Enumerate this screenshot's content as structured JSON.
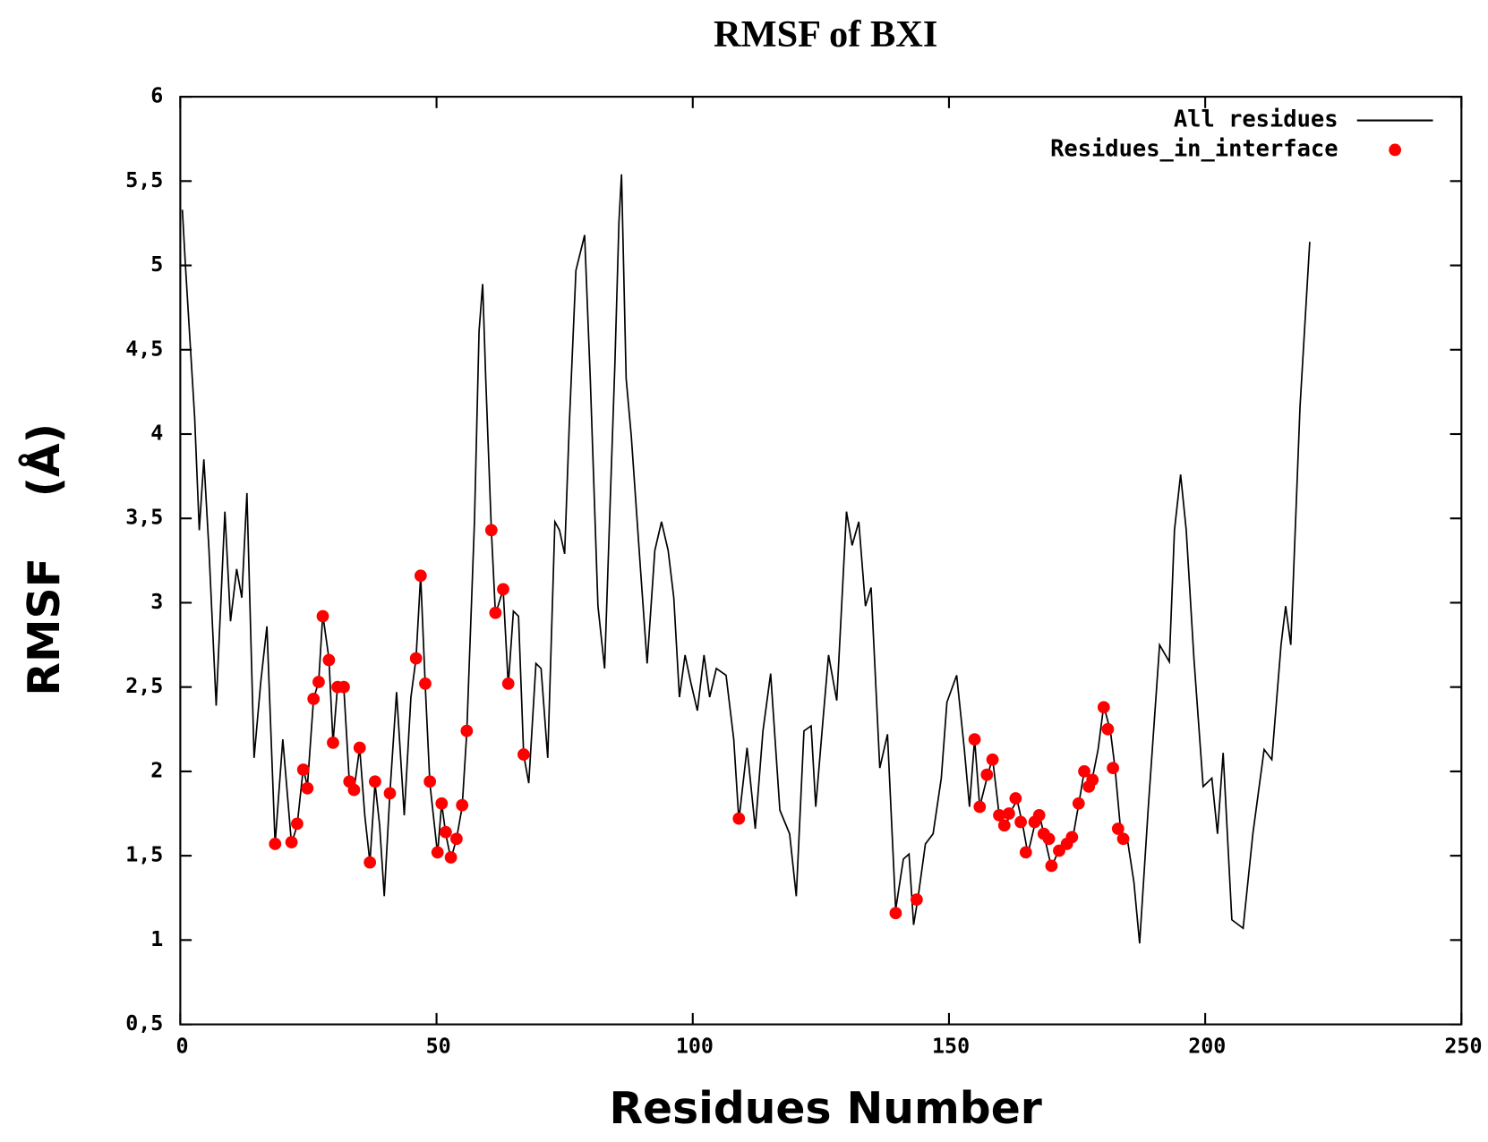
{
  "chart_data": {
    "type": "line",
    "title": "RMSF of BXI",
    "xlabel": "Residues Number",
    "ylabel": "RMSF    (Å)",
    "xlim": [
      0,
      250
    ],
    "ylim": [
      0.5,
      6
    ],
    "xticks": [
      0,
      50,
      100,
      150,
      200,
      250
    ],
    "yticks": [
      {
        "value": 0.5,
        "label": "0,5"
      },
      1,
      {
        "value": 1.5,
        "label": "1,5"
      },
      2,
      {
        "value": 2.5,
        "label": "2,5"
      },
      3,
      {
        "value": 3.5,
        "label": "3,5"
      },
      4,
      {
        "value": 4.5,
        "label": "4,5"
      },
      5,
      {
        "value": 5.5,
        "label": "5,5"
      },
      6
    ],
    "legend": "upper right",
    "series": [
      {
        "name": "All residues",
        "color": "#000000",
        "type": "line",
        "x": [
          0.4,
          1,
          2.8,
          3.7,
          4.6,
          5.6,
          7,
          8.7,
          9.8,
          11,
          12,
          13,
          14.4,
          15.7,
          16.9,
          18.5,
          20,
          21.7,
          22.8,
          24,
          24.8,
          26,
          27,
          27.8,
          29,
          29.8,
          30.7,
          31.9,
          33,
          33.9,
          35,
          36,
          37,
          38,
          38.9,
          39.8,
          40.9,
          42.2,
          43.7,
          45,
          46,
          46.9,
          47.8,
          48.7,
          50.2,
          51,
          51.8,
          52.8,
          53.9,
          55,
          55.9,
          57.4,
          58.3,
          59,
          59.6,
          60.7,
          61.5,
          63,
          64,
          65,
          66,
          67,
          68,
          69.4,
          70.4,
          71.7,
          73.1,
          74,
          75,
          75.9,
          77.2,
          78.9,
          80,
          81.5,
          82.8,
          83.7,
          84.8,
          85.6,
          86.1,
          87,
          88,
          89.8,
          91.1,
          92.6,
          93.9,
          95.2,
          96.3,
          97.4,
          98.5,
          99.6,
          100.9,
          102.2,
          103.3,
          104.6,
          106.5,
          108,
          109,
          110.6,
          112.2,
          113.7,
          115.2,
          117,
          118.9,
          120.2,
          121.7,
          123.1,
          124,
          125.4,
          126.5,
          128.1,
          130,
          131.1,
          132.4,
          133.7,
          134.8,
          136.5,
          138,
          139.6,
          141.1,
          142.2,
          143.1,
          144,
          145.4,
          146.9,
          148.5,
          149.6,
          151.5,
          153,
          154,
          155,
          156,
          157.4,
          158.5,
          159.8,
          161.1,
          162.2,
          163.3,
          164.4,
          165.4,
          166.7,
          167.6,
          168.5,
          170,
          171.5,
          173,
          174.3,
          175.4,
          176.5,
          177.8,
          179.1,
          180.2,
          181.5,
          182.4,
          183.5,
          184.8,
          186.1,
          187.2,
          188.9,
          191.1,
          193,
          194,
          195.2,
          196.3,
          197.8,
          199.6,
          201.3,
          202.4,
          203.5,
          205.2,
          207.4,
          209.3,
          211.5,
          213,
          214.8,
          215.7,
          216.7,
          218.5,
          220.4
        ],
        "values": [
          5.33,
          5.0,
          4.1,
          3.43,
          3.85,
          3.31,
          2.39,
          3.54,
          2.89,
          3.2,
          3.03,
          3.65,
          2.08,
          2.53,
          2.86,
          1.57,
          2.19,
          1.57,
          1.68,
          2.02,
          1.91,
          2.43,
          2.53,
          2.93,
          2.67,
          2.17,
          2.51,
          2.5,
          1.93,
          1.89,
          2.14,
          1.74,
          1.46,
          1.93,
          1.68,
          1.26,
          1.87,
          2.47,
          1.74,
          2.44,
          2.67,
          3.16,
          2.51,
          1.93,
          1.51,
          1.81,
          1.63,
          1.48,
          1.6,
          1.79,
          2.23,
          3.48,
          4.61,
          4.89,
          4.33,
          3.43,
          2.93,
          3.08,
          2.51,
          2.95,
          2.92,
          2.1,
          1.93,
          2.64,
          2.61,
          2.08,
          3.48,
          3.43,
          3.29,
          4.05,
          4.97,
          5.18,
          4.33,
          2.98,
          2.61,
          3.43,
          4.41,
          5.26,
          5.54,
          4.33,
          3.99,
          3.2,
          2.64,
          3.31,
          3.48,
          3.31,
          3.03,
          2.44,
          2.69,
          2.53,
          2.36,
          2.69,
          2.44,
          2.61,
          2.57,
          2.19,
          1.71,
          2.14,
          1.66,
          2.24,
          2.58,
          1.77,
          1.63,
          1.26,
          2.24,
          2.27,
          1.79,
          2.3,
          2.69,
          2.42,
          3.54,
          3.34,
          3.48,
          2.98,
          3.09,
          2.02,
          2.22,
          1.18,
          1.48,
          1.51,
          1.09,
          1.26,
          1.57,
          1.63,
          1.96,
          2.41,
          2.57,
          2.13,
          1.79,
          2.19,
          1.79,
          1.96,
          2.08,
          1.74,
          1.68,
          1.77,
          1.83,
          1.68,
          1.51,
          1.68,
          1.75,
          1.63,
          1.43,
          1.54,
          1.57,
          1.63,
          1.82,
          2.02,
          1.93,
          2.13,
          2.39,
          2.24,
          2.02,
          1.65,
          1.6,
          1.34,
          0.98,
          1.79,
          2.75,
          2.65,
          3.43,
          3.76,
          3.43,
          2.67,
          1.91,
          1.96,
          1.63,
          2.11,
          1.12,
          1.07,
          1.63,
          2.13,
          2.07,
          2.75,
          2.98,
          2.75,
          4.16,
          5.14
        ]
      },
      {
        "name": "Residues_in_interface",
        "color": "#ff0000",
        "type": "scatter",
        "x": [
          18.5,
          21.7,
          22.8,
          24,
          24.8,
          26,
          27,
          27.8,
          29,
          29.8,
          30.7,
          31.9,
          33,
          33.9,
          35,
          37,
          38,
          40.9,
          46,
          46.9,
          47.8,
          48.7,
          50.2,
          51,
          51.8,
          52.8,
          53.9,
          55,
          55.9,
          60.7,
          61.5,
          63,
          64,
          67,
          109,
          139.6,
          143.7,
          155,
          156,
          157.4,
          158.5,
          159.8,
          160.8,
          161.7,
          163,
          164,
          165,
          166.7,
          167.6,
          168.5,
          169.5,
          170,
          171.5,
          173,
          174,
          175.3,
          176.4,
          177.3,
          178,
          180.2,
          181,
          182,
          183,
          184
        ],
        "values": [
          1.57,
          1.58,
          1.69,
          2.01,
          1.9,
          2.43,
          2.53,
          2.92,
          2.66,
          2.17,
          2.5,
          2.5,
          1.94,
          1.89,
          2.14,
          1.46,
          1.94,
          1.87,
          2.67,
          3.16,
          2.52,
          1.94,
          1.52,
          1.81,
          1.64,
          1.49,
          1.6,
          1.8,
          2.24,
          3.43,
          2.94,
          3.08,
          2.52,
          2.1,
          1.72,
          1.16,
          1.24,
          2.19,
          1.79,
          1.98,
          2.07,
          1.74,
          1.68,
          1.75,
          1.84,
          1.7,
          1.52,
          1.7,
          1.74,
          1.63,
          1.6,
          1.44,
          1.53,
          1.57,
          1.61,
          1.81,
          2.0,
          1.91,
          1.95,
          2.38,
          2.25,
          2.02,
          1.66,
          1.6
        ]
      }
    ]
  }
}
